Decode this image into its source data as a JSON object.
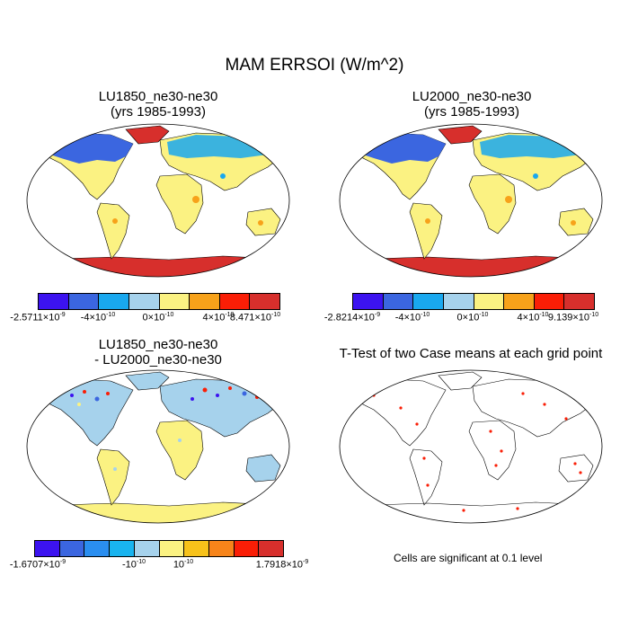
{
  "figure": {
    "main_title": "MAM ERRSOI (W/m^2)"
  },
  "panels": [
    {
      "title_line1": "LU1850_ne30-ne30",
      "title_line2": "(yrs 1985-1993)",
      "colorbar": {
        "colors": [
          "#3c13f0",
          "#3b66e0",
          "#19a8ef",
          "#a6d2ec",
          "#fbf282",
          "#f7a21a",
          "#fa1e06",
          "#d72f2c"
        ],
        "ticks": [
          {
            "mant": "-2.5711",
            "exp": "-9"
          },
          {
            "mant": "-4",
            "exp": "-10"
          },
          {
            "mant": "0",
            "exp": "-10"
          },
          {
            "mant": "4",
            "exp": "-10"
          },
          {
            "mant": "8.471",
            "exp": "-10"
          }
        ]
      }
    },
    {
      "title_line1": "LU2000_ne30-ne30",
      "title_line2": "(yrs 1985-1993)",
      "colorbar": {
        "colors": [
          "#3c13f0",
          "#3b66e0",
          "#19a8ef",
          "#a6d2ec",
          "#fbf282",
          "#f7a21a",
          "#fa1e06",
          "#d72f2c"
        ],
        "ticks": [
          {
            "mant": "-2.8214",
            "exp": "-9"
          },
          {
            "mant": "-4",
            "exp": "-10"
          },
          {
            "mant": "0",
            "exp": "-10"
          },
          {
            "mant": "4",
            "exp": "-10"
          },
          {
            "mant": "9.139",
            "exp": "-10"
          }
        ]
      }
    },
    {
      "title_line1": "LU1850_ne30-ne30",
      "title_line2": "- LU2000_ne30-ne30",
      "colorbar": {
        "colors": [
          "#3c13f0",
          "#3b66e0",
          "#2a8ef0",
          "#19b4ef",
          "#a6d2ec",
          "#fbf282",
          "#f7c21a",
          "#f7841a",
          "#fa1e06",
          "#d72f2c"
        ],
        "ticks": [
          {
            "mant": "-1.6707",
            "exp": "-9"
          },
          {
            "mant": "-",
            "exp": "-10"
          },
          {
            "mant": "",
            "exp": "-10"
          },
          {
            "mant": "1.7918",
            "exp": "-9"
          }
        ]
      }
    },
    {
      "title_line1": "T-Test of two Case means at each grid point",
      "note": "Cells are significant at 0.1 level"
    }
  ]
}
